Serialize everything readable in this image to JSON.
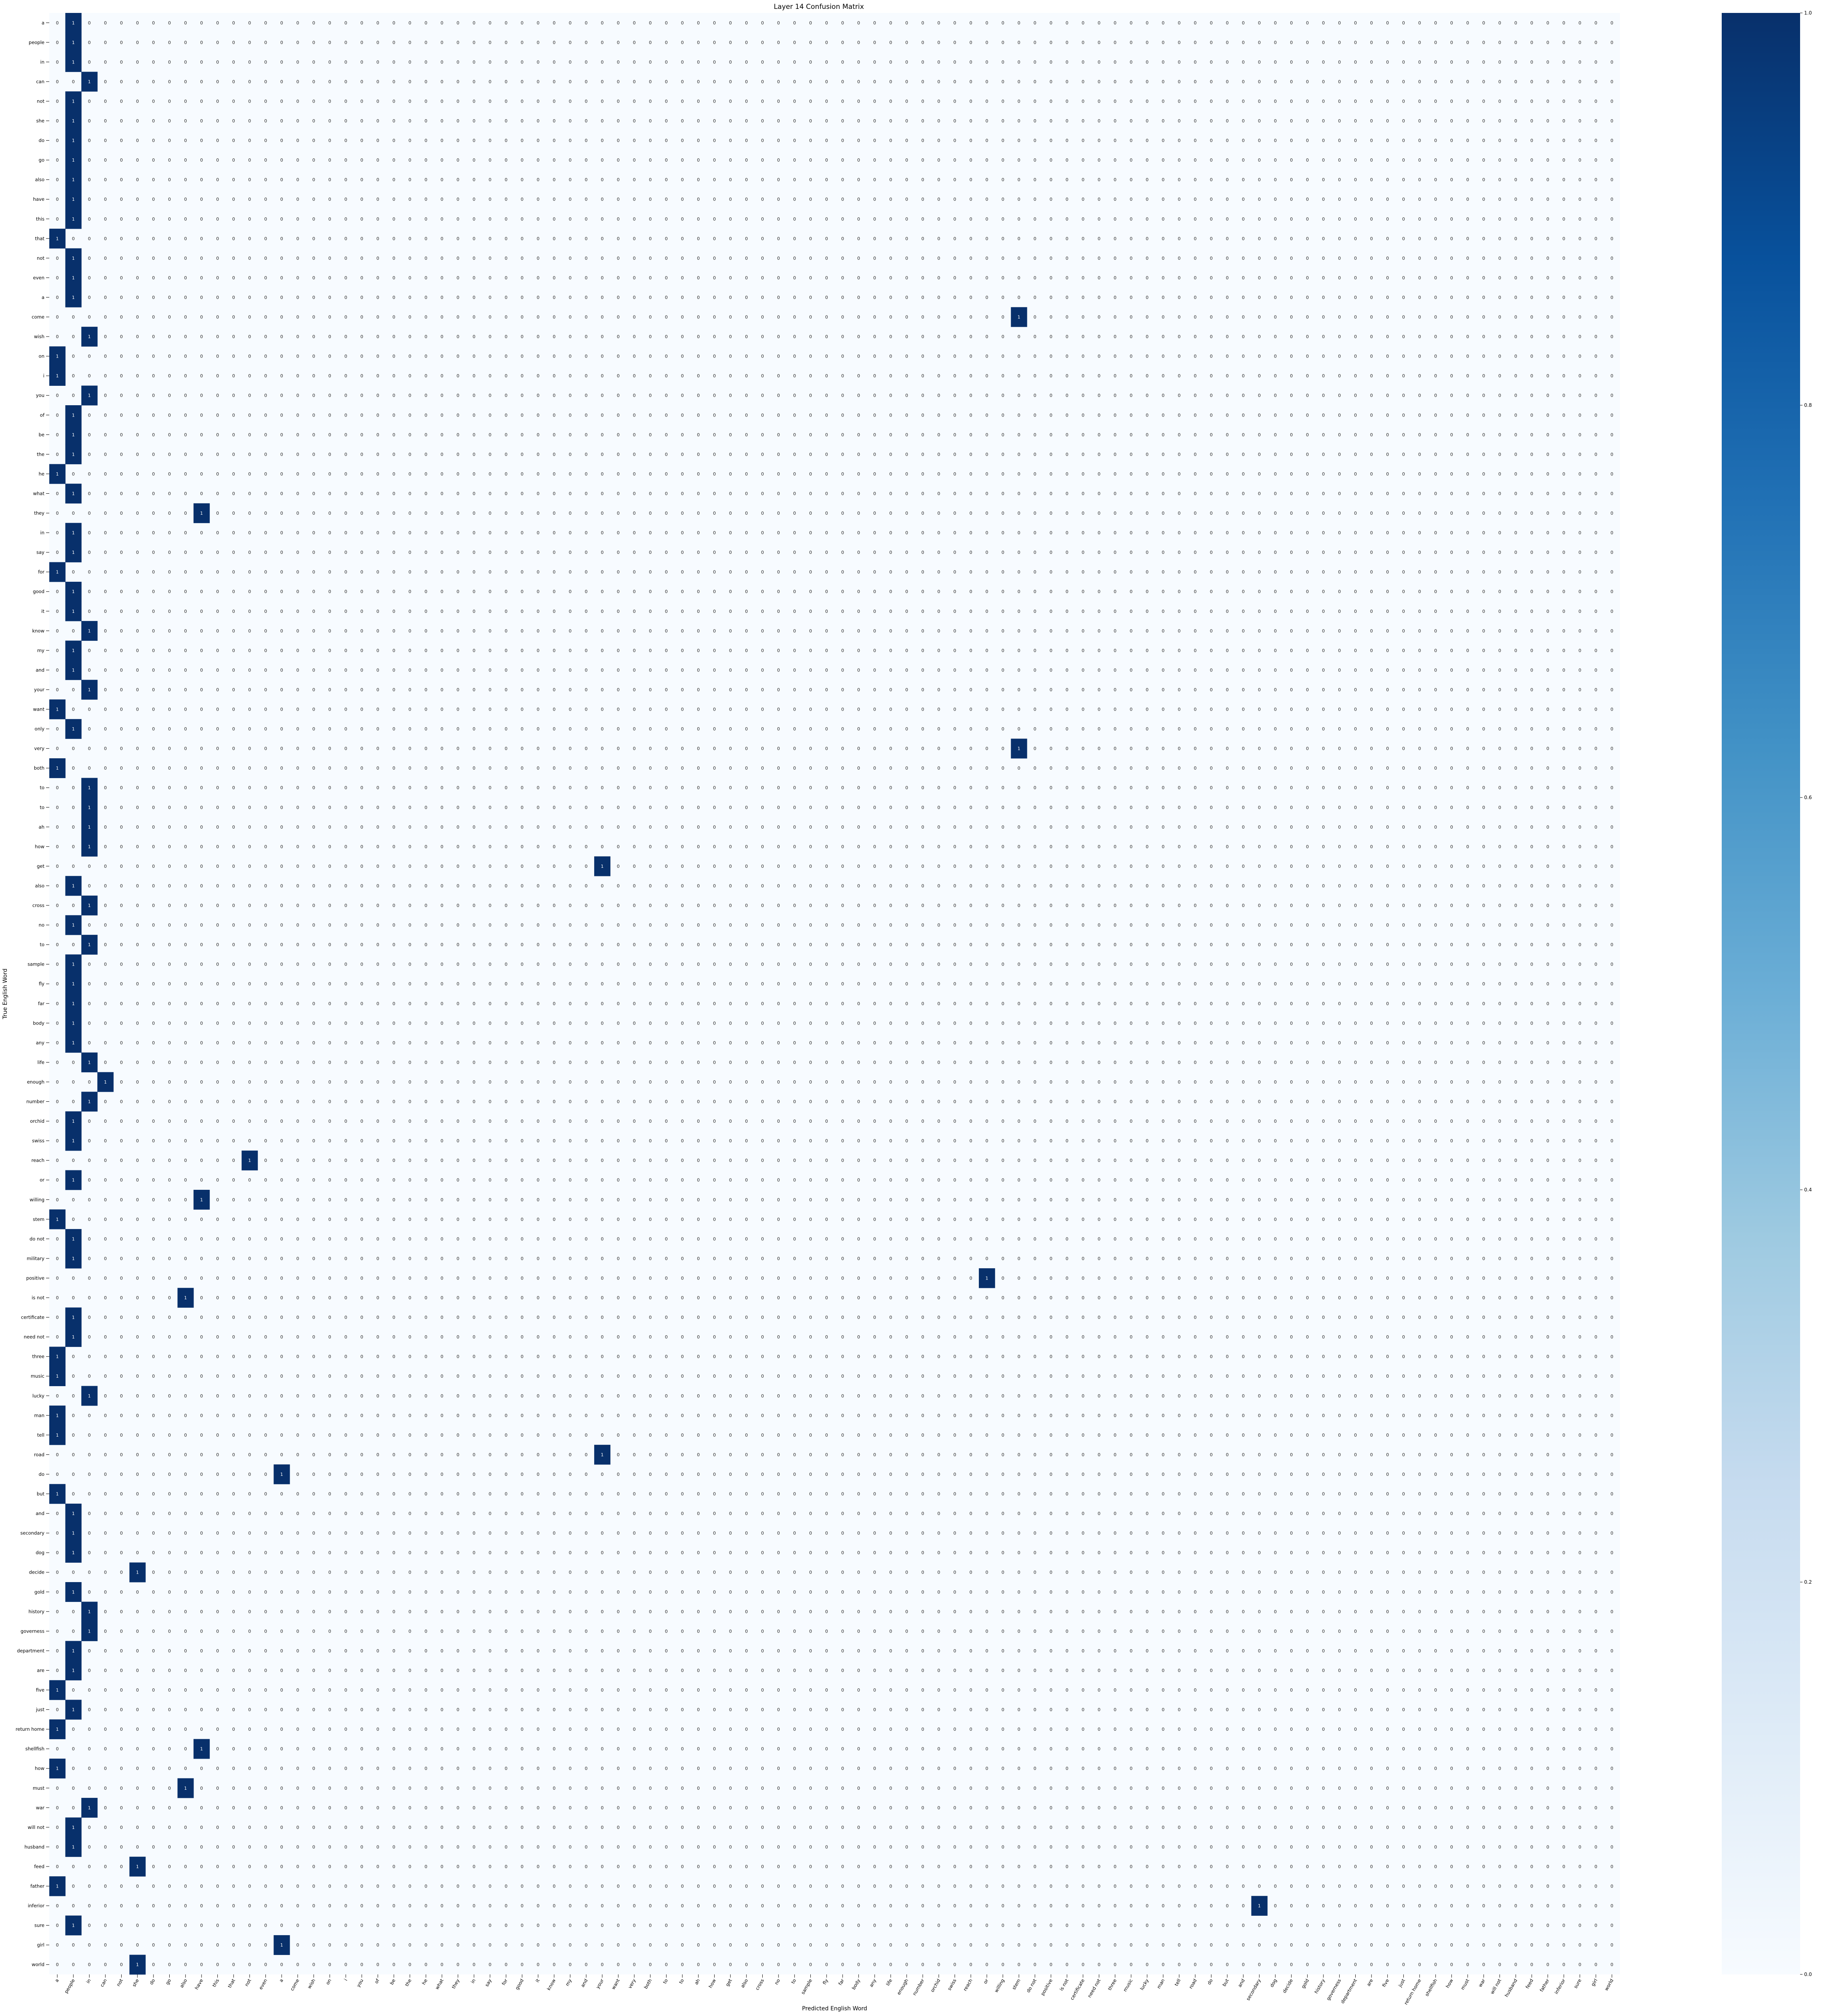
{
  "chart_data": {
    "type": "heatmap",
    "title": "Layer 14 Confusion Matrix",
    "xlabel": "Predicted English Word",
    "ylabel": "True English Word",
    "rows": [
      "a",
      "people",
      "in",
      "can",
      "not",
      "she",
      "do",
      "go",
      "also",
      "have",
      "this",
      "that",
      "not",
      "even",
      "a",
      "come",
      "wish",
      "on",
      "i",
      "you",
      "of",
      "be",
      "the",
      "he",
      "what",
      "they",
      "in",
      "say",
      "for",
      "good",
      "it",
      "know",
      "my",
      "and",
      "your",
      "want",
      "only",
      "very",
      "both",
      "to",
      "to",
      "ah",
      "how",
      "get",
      "also",
      "cross",
      "no",
      "to",
      "sample",
      "fly",
      "far",
      "body",
      "any",
      "life",
      "enough",
      "number",
      "orchid",
      "swiss",
      "reach",
      "or",
      "willing",
      "stem",
      "do not",
      "military",
      "positive",
      "is not",
      "certificate",
      "need not",
      "three",
      "music",
      "lucky",
      "man",
      "tell",
      "road",
      "do",
      "but",
      "and",
      "secondary",
      "dog",
      "decide",
      "gold",
      "history",
      "governess",
      "department",
      "are",
      "five",
      "just",
      "return home",
      "shellfish",
      "how",
      "must",
      "war",
      "will not",
      "husband",
      "feed",
      "father",
      "inferior",
      "sure",
      "girl",
      "world"
    ],
    "columns": [
      "a",
      "people",
      "in",
      "can",
      "not",
      "she",
      "do",
      "go",
      "also",
      "have",
      "this",
      "that",
      "not",
      "even",
      "a",
      "come",
      "wish",
      "on",
      "i",
      "you",
      "of",
      "be",
      "the",
      "he",
      "what",
      "they",
      "in",
      "say",
      "for",
      "good",
      "it",
      "know",
      "my",
      "and",
      "your",
      "want",
      "very",
      "both",
      "to",
      "to",
      "ah",
      "how",
      "get",
      "also",
      "cross",
      "no",
      "to",
      "sample",
      "fly",
      "far",
      "body",
      "any",
      "life",
      "enough",
      "number",
      "orchid",
      "swiss",
      "reach",
      "or",
      "willing",
      "stem",
      "do not",
      "positive",
      "is not",
      "certificate",
      "need not",
      "three",
      "music",
      "lucky",
      "man",
      "tell",
      "road",
      "do",
      "but",
      "and",
      "secondary",
      "dog",
      "decide",
      "gold",
      "history",
      "governess",
      "department",
      "are",
      "five",
      "just",
      "return home",
      "shellfish",
      "how",
      "must",
      "war",
      "will not",
      "husband",
      "feed",
      "father",
      "inferior",
      "sure",
      "girl",
      "world"
    ],
    "ones": [
      [
        0,
        1
      ],
      [
        1,
        1
      ],
      [
        2,
        1
      ],
      [
        3,
        2
      ],
      [
        4,
        1
      ],
      [
        5,
        1
      ],
      [
        6,
        1
      ],
      [
        7,
        1
      ],
      [
        8,
        1
      ],
      [
        9,
        1
      ],
      [
        10,
        1
      ],
      [
        11,
        0
      ],
      [
        12,
        1
      ],
      [
        13,
        1
      ],
      [
        14,
        1
      ],
      [
        15,
        60
      ],
      [
        16,
        2
      ],
      [
        17,
        0
      ],
      [
        18,
        0
      ],
      [
        19,
        2
      ],
      [
        20,
        1
      ],
      [
        21,
        1
      ],
      [
        22,
        1
      ],
      [
        23,
        0
      ],
      [
        24,
        1
      ],
      [
        25,
        9
      ],
      [
        26,
        1
      ],
      [
        27,
        1
      ],
      [
        28,
        0
      ],
      [
        29,
        1
      ],
      [
        30,
        1
      ],
      [
        31,
        2
      ],
      [
        32,
        1
      ],
      [
        33,
        1
      ],
      [
        34,
        2
      ],
      [
        35,
        0
      ],
      [
        36,
        1
      ],
      [
        37,
        60
      ],
      [
        38,
        0
      ],
      [
        39,
        2
      ],
      [
        40,
        2
      ],
      [
        41,
        2
      ],
      [
        42,
        2
      ],
      [
        43,
        34
      ],
      [
        44,
        1
      ],
      [
        45,
        2
      ],
      [
        46,
        1
      ],
      [
        47,
        2
      ],
      [
        48,
        1
      ],
      [
        49,
        1
      ],
      [
        50,
        1
      ],
      [
        51,
        1
      ],
      [
        52,
        1
      ],
      [
        53,
        2
      ],
      [
        54,
        3
      ],
      [
        55,
        2
      ],
      [
        56,
        1
      ],
      [
        57,
        1
      ],
      [
        58,
        12
      ],
      [
        59,
        1
      ],
      [
        60,
        9
      ],
      [
        61,
        0
      ],
      [
        62,
        1
      ],
      [
        63,
        1
      ],
      [
        64,
        58
      ],
      [
        65,
        8
      ],
      [
        66,
        1
      ],
      [
        67,
        1
      ],
      [
        68,
        0
      ],
      [
        69,
        0
      ],
      [
        70,
        2
      ],
      [
        71,
        0
      ],
      [
        72,
        0
      ],
      [
        73,
        34
      ],
      [
        74,
        14
      ],
      [
        75,
        0
      ],
      [
        76,
        1
      ],
      [
        77,
        1
      ],
      [
        78,
        1
      ],
      [
        79,
        5
      ],
      [
        80,
        1
      ],
      [
        81,
        2
      ],
      [
        82,
        2
      ],
      [
        83,
        1
      ],
      [
        84,
        1
      ],
      [
        85,
        0
      ],
      [
        86,
        1
      ],
      [
        87,
        0
      ],
      [
        88,
        9
      ],
      [
        89,
        0
      ],
      [
        90,
        8
      ],
      [
        91,
        2
      ],
      [
        92,
        1
      ],
      [
        93,
        1
      ],
      [
        94,
        5
      ],
      [
        95,
        0
      ],
      [
        96,
        75
      ],
      [
        97,
        1
      ],
      [
        98,
        14
      ],
      [
        99,
        5
      ]
    ],
    "value_range": [
      0.0,
      1.0
    ],
    "colorbar_ticks": [
      "0.0",
      "0.2",
      "0.4",
      "0.6",
      "0.8",
      "1.0"
    ],
    "colormap": "Blues",
    "annotations": true,
    "note_cells": "all cells not listed in ones have value 0"
  }
}
